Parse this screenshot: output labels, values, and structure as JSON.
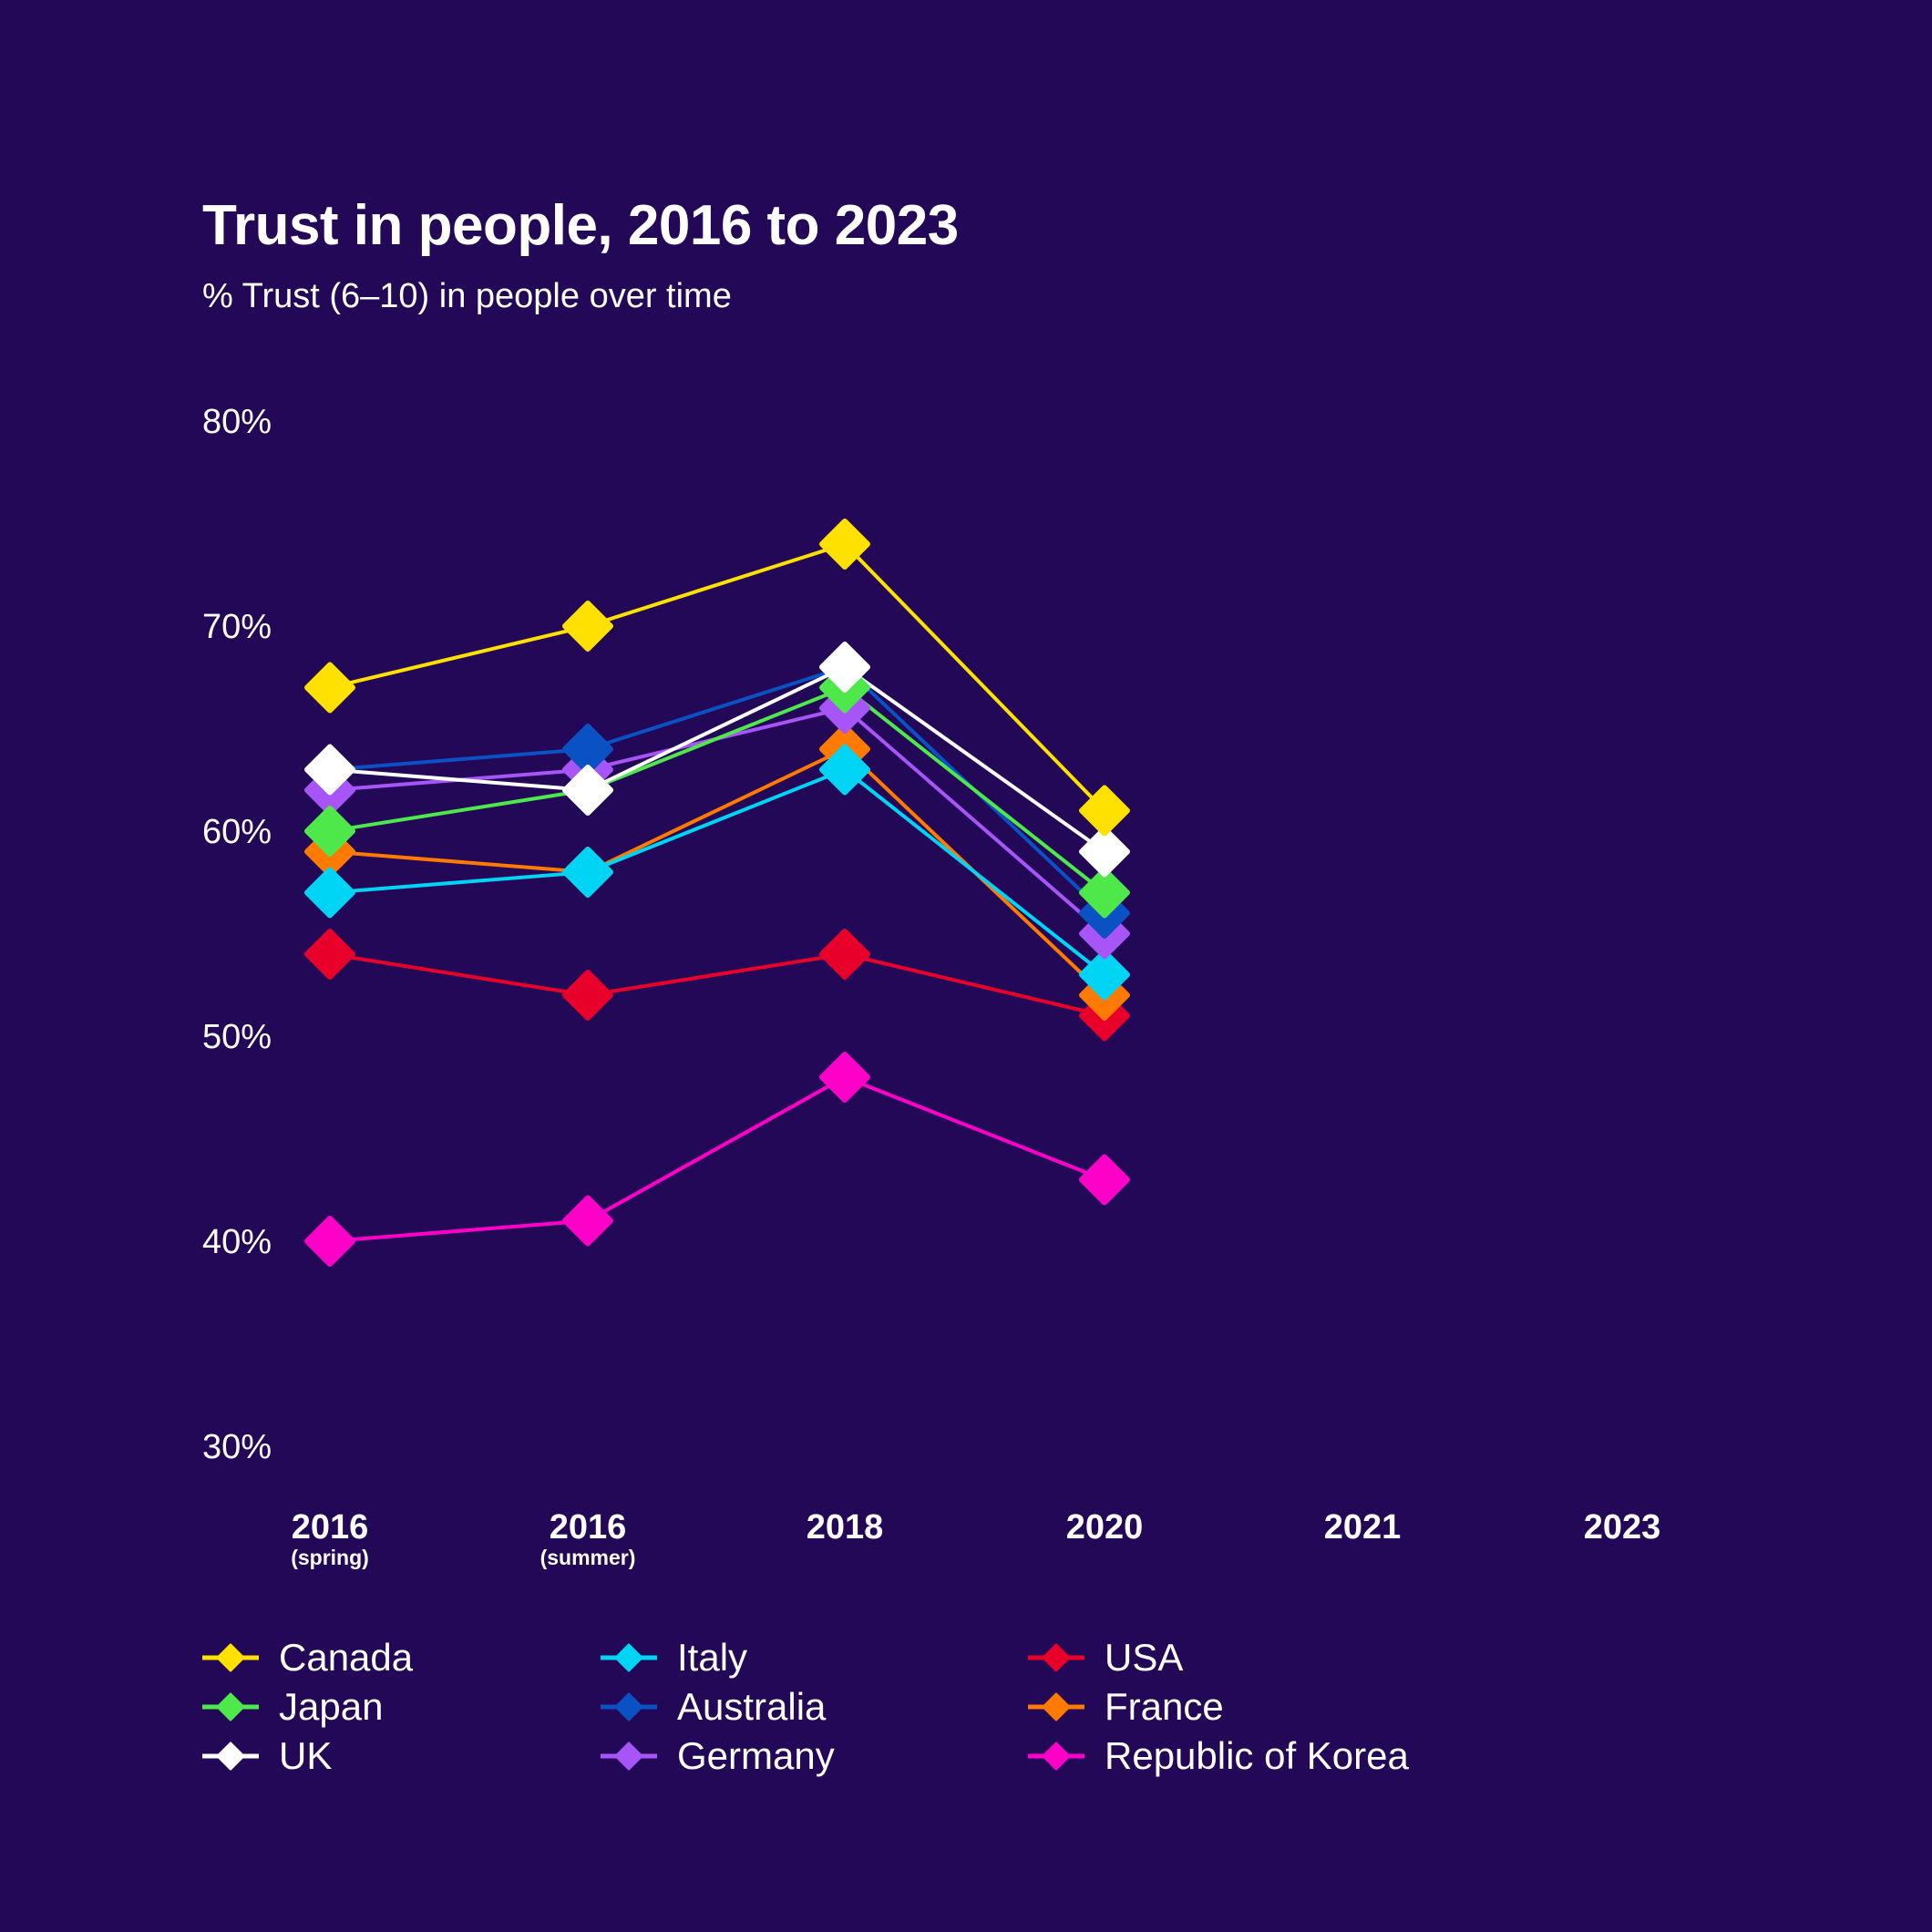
{
  "title": "Trust in people, 2016 to 2023",
  "subtitle": "% Trust (6–10) in people over time",
  "chart_data": {
    "type": "line",
    "title": "Trust in people, 2016 to 2023",
    "subtitle": "% Trust (6–10) in people over time",
    "categories": [
      "2016 (spring)",
      "2016 (summer)",
      "2018",
      "2020",
      "2021",
      "2023"
    ],
    "x_tick_labels": [
      {
        "main": "2016",
        "sub": "(spring)"
      },
      {
        "main": "2016",
        "sub": "(summer)"
      },
      {
        "main": "2018",
        "sub": ""
      },
      {
        "main": "2020",
        "sub": ""
      },
      {
        "main": "2021",
        "sub": ""
      },
      {
        "main": "2023",
        "sub": ""
      }
    ],
    "y_ticks": [
      30,
      40,
      50,
      60,
      70,
      80
    ],
    "y_tick_labels": [
      "30%",
      "40%",
      "50%",
      "60%",
      "70%",
      "80%"
    ],
    "ylim": [
      30,
      80
    ],
    "grid": false,
    "legend_position": "bottom",
    "marker": "diamond",
    "series": [
      {
        "name": "Canada",
        "color": "#FFE100",
        "values": [
          67,
          70,
          74,
          61,
          null,
          null
        ]
      },
      {
        "name": "Japan",
        "color": "#4EE84A",
        "values": [
          60,
          62,
          67,
          57,
          null,
          null
        ]
      },
      {
        "name": "UK",
        "color": "#FFFFFF",
        "values": [
          63,
          62,
          68,
          59,
          null,
          null
        ]
      },
      {
        "name": "Italy",
        "color": "#00D4F5",
        "values": [
          57,
          58,
          63,
          53,
          null,
          null
        ]
      },
      {
        "name": "Australia",
        "color": "#0A52C4",
        "values": [
          63,
          64,
          68,
          56,
          null,
          null
        ]
      },
      {
        "name": "Germany",
        "color": "#A855F7",
        "values": [
          62,
          63,
          66,
          55,
          null,
          null
        ]
      },
      {
        "name": "USA",
        "color": "#E8002A",
        "values": [
          54,
          52,
          54,
          51,
          null,
          null
        ]
      },
      {
        "name": "France",
        "color": "#FF7A00",
        "values": [
          59,
          58,
          64,
          52,
          null,
          null
        ]
      },
      {
        "name": "Republic of Korea",
        "color": "#FF00C8",
        "values": [
          40,
          41,
          48,
          43,
          null,
          null
        ]
      }
    ]
  },
  "draw_order": [
    "Republic of Korea",
    "USA",
    "France",
    "Italy",
    "Germany",
    "Australia",
    "Japan",
    "UK",
    "Canada"
  ]
}
